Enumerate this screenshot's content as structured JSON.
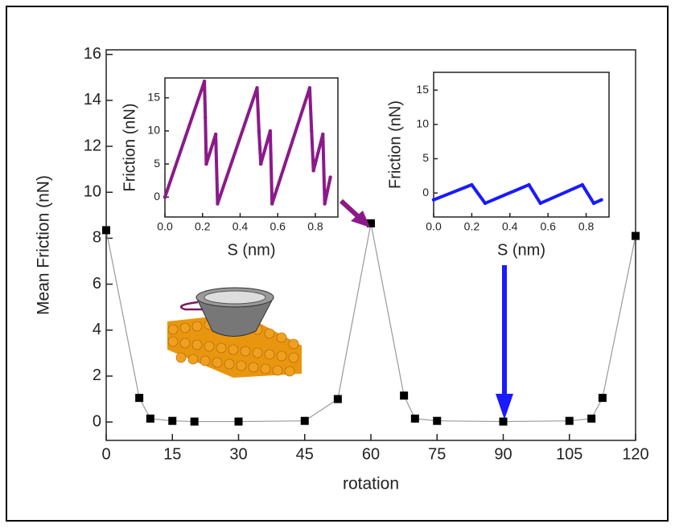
{
  "chart_data": [
    {
      "type": "line",
      "xlabel": "rotation",
      "ylabel": "Mean Friction (nN)",
      "x": [
        0,
        7.5,
        10,
        15,
        20,
        30,
        45,
        52.5,
        60,
        67.5,
        70,
        75,
        90,
        105,
        110,
        112.5,
        120
      ],
      "series": [
        {
          "color": "#000000",
          "line_color": "#999999",
          "marker": "square",
          "values": [
            8.35,
            1.05,
            0.15,
            0.05,
            0.02,
            0.02,
            0.05,
            1.0,
            8.65,
            1.15,
            0.15,
            0.05,
            0.02,
            0.05,
            0.15,
            1.05,
            8.1
          ]
        }
      ],
      "xlim": [
        0,
        120
      ],
      "xticks": [
        0,
        15,
        30,
        45,
        60,
        75,
        90,
        105,
        120
      ],
      "ylim": [
        -0.8,
        16.2
      ],
      "yticks": [
        0,
        2,
        4,
        6,
        8,
        10,
        12,
        14,
        16
      ]
    },
    {
      "type": "line",
      "xlabel": "S (nm)",
      "ylabel": "Friction (nN)",
      "x": [
        0,
        0.21,
        0.215,
        0.22,
        0.27,
        0.28,
        0.49,
        0.5,
        0.51,
        0.56,
        0.57,
        0.77,
        0.78,
        0.79,
        0.84,
        0.85,
        0.88
      ],
      "series": [
        {
          "color": "#8b1a89",
          "values": [
            0,
            17.5,
            12,
            5,
            9.5,
            -1,
            16.5,
            10,
            5,
            10,
            -1,
            16.5,
            10,
            4,
            9.5,
            -1,
            3
          ]
        }
      ],
      "xlim": [
        0,
        0.92
      ],
      "xticks": [
        {
          "value": 0,
          "label": "0.0"
        },
        0.2,
        0.4,
        0.6,
        0.8
      ],
      "ylim": [
        -3,
        18
      ],
      "yticks": [
        0,
        5,
        10,
        15
      ]
    },
    {
      "type": "line",
      "xlabel": "S (nm)",
      "ylabel": "Friction (nN)",
      "x": [
        0,
        0.2,
        0.27,
        0.5,
        0.56,
        0.78,
        0.84,
        0.88
      ],
      "series": [
        {
          "color": "#1a1aff",
          "values": [
            -1,
            1.2,
            -1.5,
            1.2,
            -1.5,
            1.2,
            -1.5,
            -1
          ]
        }
      ],
      "xlim": [
        0,
        0.92
      ],
      "xticks": [
        {
          "value": 0,
          "label": "0.0"
        },
        0.2,
        0.4,
        0.6,
        0.8
      ],
      "ylim": [
        -3.5,
        17.6
      ],
      "yticks": [
        0,
        5,
        10,
        15
      ]
    }
  ]
}
